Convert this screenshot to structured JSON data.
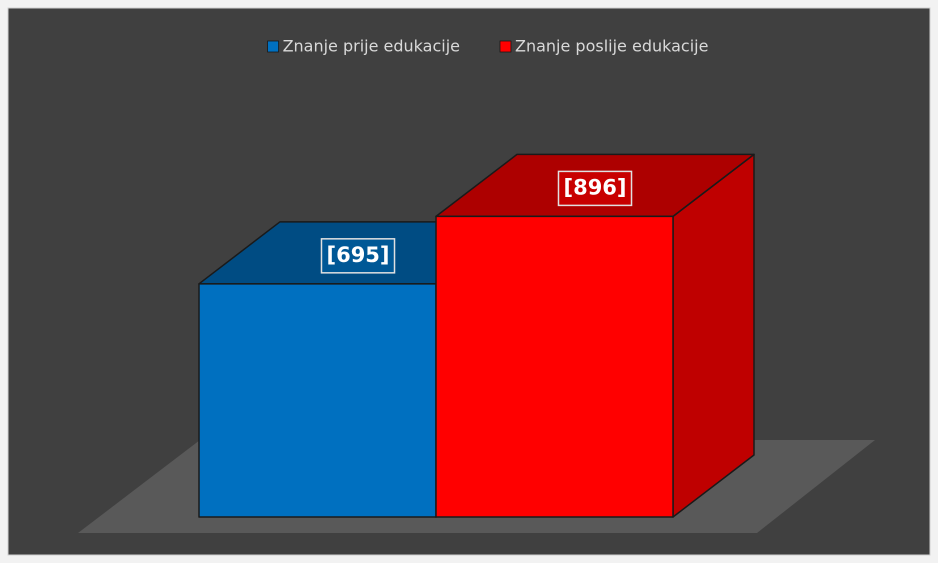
{
  "chart_data": {
    "type": "bar",
    "series": [
      {
        "name": "Znanje prije edukacije",
        "color": "#0070c0",
        "values": [
          695
        ],
        "value_labels": [
          "[695]"
        ]
      },
      {
        "name": "Znanje poslije edukacije",
        "color": "#ff0000",
        "values": [
          896
        ],
        "value_labels": [
          "[896]"
        ]
      }
    ],
    "legend": "top"
  }
}
